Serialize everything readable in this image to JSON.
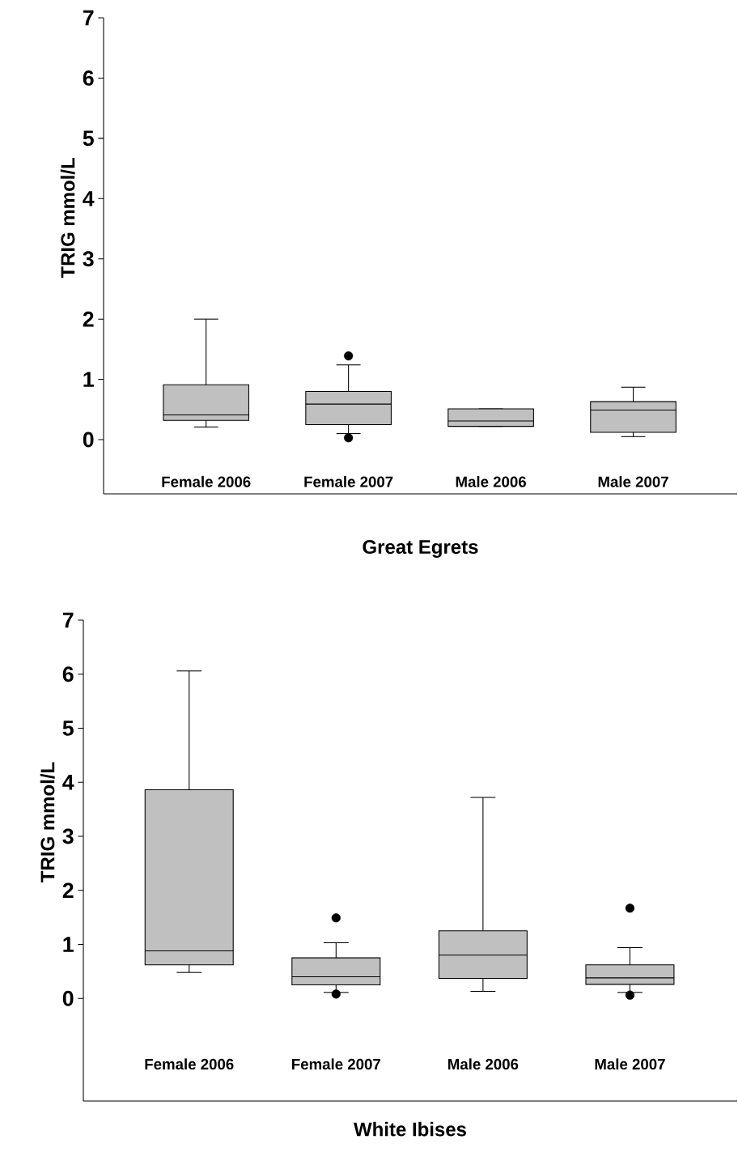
{
  "chart_data": [
    {
      "type": "box",
      "categories": [
        "Female 2006",
        "Female 2007",
        "Male 2006",
        "Male 2007"
      ],
      "xlabel": "Great Egrets",
      "ylabel": "TRIG mmol/L",
      "ylim": [
        -0.9,
        7
      ],
      "yticks": [
        0,
        1,
        2,
        3,
        4,
        5,
        6,
        7
      ],
      "series": [
        {
          "color": "#c0c0c0",
          "boxes": [
            {
              "low": 0.21,
              "q1": 0.32,
              "median": 0.41,
              "q3": 0.91,
              "high": 2.0
            },
            {
              "low": 0.1,
              "q1": 0.25,
              "median": 0.59,
              "q3": 0.8,
              "high": 1.24,
              "outliers": [
                1.39,
                0.03
              ]
            },
            {
              "low": 0.22,
              "q1": 0.22,
              "median": 0.31,
              "q3": 0.51,
              "high": 0.51
            },
            {
              "low": 0.05,
              "q1": 0.12,
              "median": 0.49,
              "q3": 0.63,
              "high": 0.87
            }
          ]
        }
      ]
    },
    {
      "type": "box",
      "categories": [
        "Female 2006",
        "Female 2007",
        "Male 2006",
        "Male 2007"
      ],
      "xlabel": "White Ibises",
      "ylabel": "TRIG mmol/L",
      "ylim": [
        -1.9,
        7
      ],
      "yticks": [
        0,
        1,
        2,
        3,
        4,
        5,
        6,
        7
      ],
      "series": [
        {
          "color": "#c0c0c0",
          "boxes": [
            {
              "low": 0.48,
              "q1": 0.62,
              "median": 0.88,
              "q3": 3.86,
              "high": 6.06
            },
            {
              "low": 0.11,
              "q1": 0.25,
              "median": 0.4,
              "q3": 0.75,
              "high": 1.03,
              "outliers": [
                1.49,
                0.08
              ]
            },
            {
              "low": 0.13,
              "q1": 0.37,
              "median": 0.8,
              "q3": 1.25,
              "high": 3.72
            },
            {
              "low": 0.11,
              "q1": 0.26,
              "median": 0.38,
              "q3": 0.62,
              "high": 0.94,
              "outliers": [
                1.67,
                0.06
              ]
            }
          ]
        }
      ]
    }
  ]
}
